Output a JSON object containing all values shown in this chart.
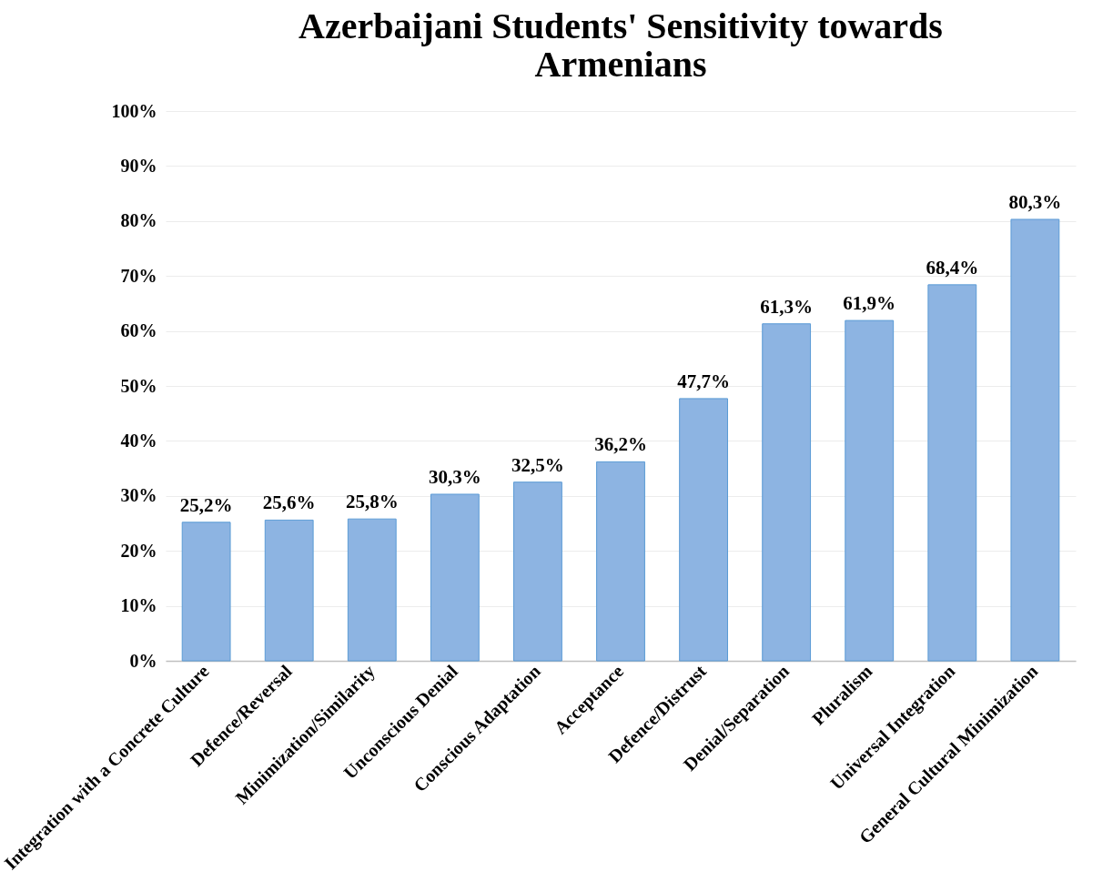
{
  "chart_data": {
    "type": "bar",
    "title": [
      "Azerbaijani Students' Sensitivity towards",
      "Armenians"
    ],
    "categories": [
      "Integration with a Concrete Culture",
      "Defence/Reversal",
      "Minimization/Similarity",
      "Unconscious Denial",
      "Conscious Adaptation",
      "Acceptance",
      "Defence/Distrust",
      "Denial/Separation",
      "Pluralism",
      "Universal Integration",
      "General Cultural Minimization"
    ],
    "values": [
      25.2,
      25.6,
      25.8,
      30.3,
      32.5,
      36.2,
      47.7,
      61.3,
      61.9,
      68.4,
      80.3
    ],
    "value_labels": [
      "25,2%",
      "25,6%",
      "25,8%",
      "30,3%",
      "32,5%",
      "36,2%",
      "47,7%",
      "61,3%",
      "61,9%",
      "68,4%",
      "80,3%"
    ],
    "color": "#8db4e2",
    "ylim": [
      0,
      100
    ],
    "yticks": [
      {
        "value": 0,
        "label": "0%"
      },
      {
        "value": 10,
        "label": "10%"
      },
      {
        "value": 20,
        "label": "20%"
      },
      {
        "value": 30,
        "label": "30%"
      },
      {
        "value": 40,
        "label": "40%"
      },
      {
        "value": 50,
        "label": "50%"
      },
      {
        "value": 60,
        "label": "60%"
      },
      {
        "value": 70,
        "label": "70%"
      },
      {
        "value": 80,
        "label": "80%"
      },
      {
        "value": 90,
        "label": "90%"
      },
      {
        "value": 100,
        "label": "100%"
      }
    ],
    "grid": "y"
  }
}
